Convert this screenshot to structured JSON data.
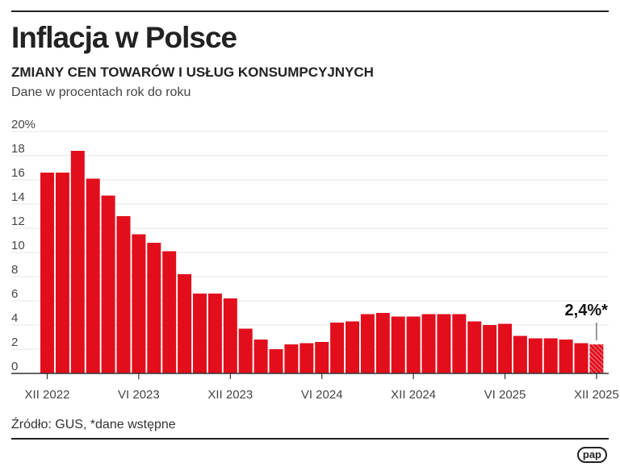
{
  "header": {
    "title": "Inflacja w Polsce",
    "subtitle": "ZMIANY CEN TOWARÓW I USŁUG KONSUMPCYJNYCH",
    "description": "Dane w procentach rok do roku"
  },
  "footer": {
    "source": "Źródło: GUS, *dane wstępne",
    "logo": "pap"
  },
  "chart_data": {
    "type": "bar",
    "ylim": [
      0,
      20
    ],
    "yticks": [
      "0",
      "2",
      "4",
      "6",
      "8",
      "10",
      "12",
      "14",
      "16",
      "18",
      "20%"
    ],
    "xtick_labels": [
      "XII 2022",
      "VI 2023",
      "XII 2023",
      "VI 2024",
      "XII 2024",
      "VI 2025",
      "XII 2025"
    ],
    "categories": [
      "2022-12",
      "2023-01",
      "2023-02",
      "2023-03",
      "2023-04",
      "2023-05",
      "2023-06",
      "2023-07",
      "2023-08",
      "2023-09",
      "2023-10",
      "2023-11",
      "2023-12",
      "2024-01",
      "2024-02",
      "2024-03",
      "2024-04",
      "2024-05",
      "2024-06",
      "2024-07",
      "2024-08",
      "2024-09",
      "2024-10",
      "2024-11",
      "2024-12",
      "2025-01",
      "2025-02",
      "2025-03",
      "2025-04",
      "2025-05",
      "2025-06",
      "2025-07",
      "2025-08",
      "2025-09",
      "2025-10",
      "2025-11",
      "2025-12"
    ],
    "values": [
      16.6,
      16.6,
      18.4,
      16.1,
      14.7,
      13.0,
      11.5,
      10.8,
      10.1,
      8.2,
      6.6,
      6.6,
      6.2,
      3.7,
      2.8,
      2.0,
      2.4,
      2.5,
      2.6,
      4.2,
      4.3,
      4.9,
      5.0,
      4.7,
      4.7,
      4.9,
      4.9,
      4.9,
      4.3,
      4.0,
      4.1,
      3.1,
      2.9,
      2.9,
      2.8,
      2.5,
      2.4
    ],
    "preliminary_last": true,
    "annotation": "2,4%*",
    "grid": true,
    "color": "#e20e1c"
  }
}
